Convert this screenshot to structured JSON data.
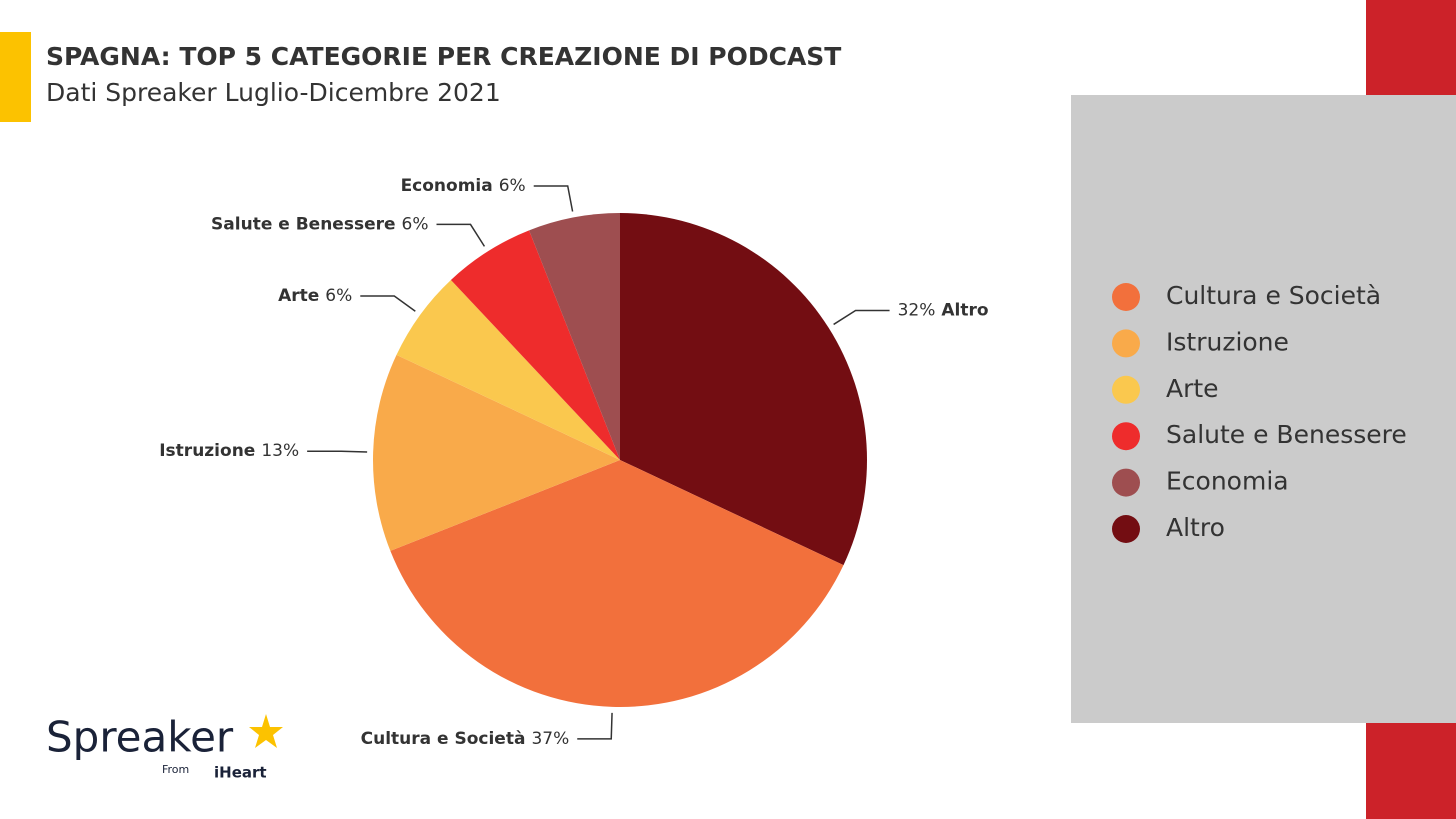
{
  "chart_data": {
    "type": "pie",
    "title": "SPAGNA: TOP 5 CATEGORIE PER CREAZIONE DI PODCAST",
    "subtitle": "Dati Spreaker Luglio-Dicembre 2021",
    "categories": [
      "Cultura e Società",
      "Istruzione",
      "Arte",
      "Salute e Benessere",
      "Economia",
      "Altro"
    ],
    "values": [
      37,
      13,
      6,
      6,
      6,
      32
    ],
    "value_labels": [
      "37%",
      "13%",
      "6%",
      "6%",
      "6%",
      "32%"
    ],
    "colors": [
      "#F2703C",
      "#F9AA4A",
      "#FAC84E",
      "#EE2C2C",
      "#9E4E50",
      "#730D12"
    ],
    "legend": "right"
  },
  "logo": {
    "name": "Spreaker",
    "from": "From",
    "brand": "iHeart"
  }
}
